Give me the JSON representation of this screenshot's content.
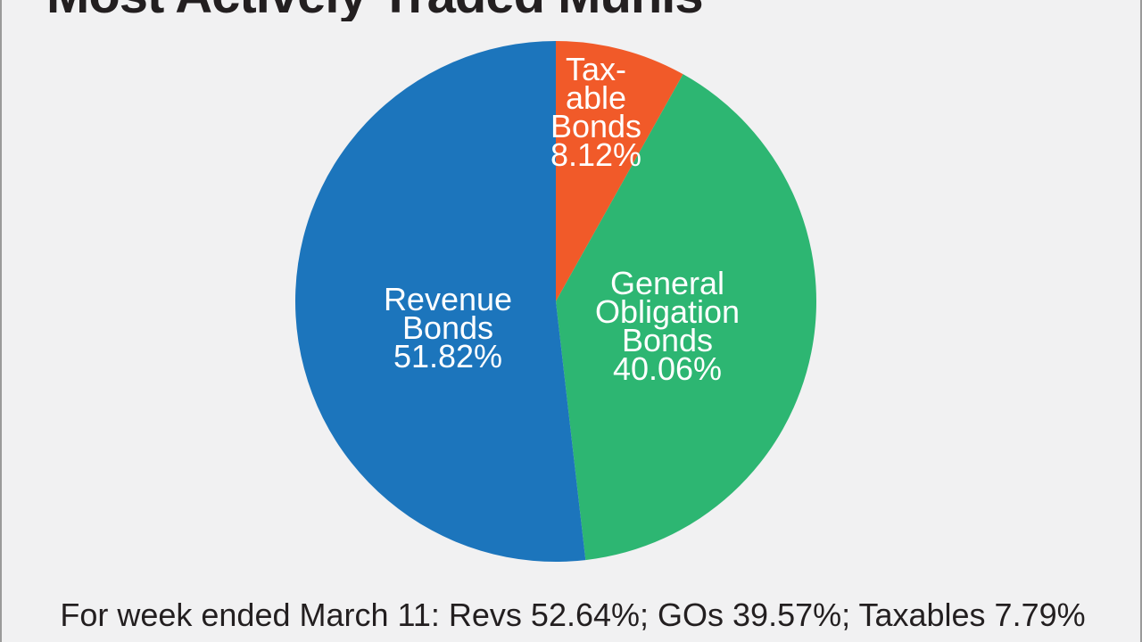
{
  "chart_data": {
    "type": "pie",
    "title": "Most Actively Traded Munis",
    "start": "12 o'clock, clockwise",
    "series": [
      {
        "label_lines": [
          "Tax-",
          "able",
          "Bonds"
        ],
        "value": 8.12,
        "value_label": "8.12%",
        "color": "#f15a29",
        "label_color": "#ffffff"
      },
      {
        "label_lines": [
          "General",
          "Obligation",
          "Bonds"
        ],
        "value": 40.06,
        "value_label": "40.06%",
        "color": "#2db672",
        "label_color": "#ffffff"
      },
      {
        "label_lines": [
          "Revenue",
          "Bonds"
        ],
        "value": 51.82,
        "value_label": "51.82%",
        "color": "#1c75bc",
        "label_color": "#ffffff"
      }
    ]
  },
  "footnote": "For week ended March 11: Revs 52.64%; GOs 39.57%; Taxables 7.79%",
  "colors": {
    "background": "#f1f1f2",
    "border": "#9a9a9a",
    "text": "#231f20"
  }
}
